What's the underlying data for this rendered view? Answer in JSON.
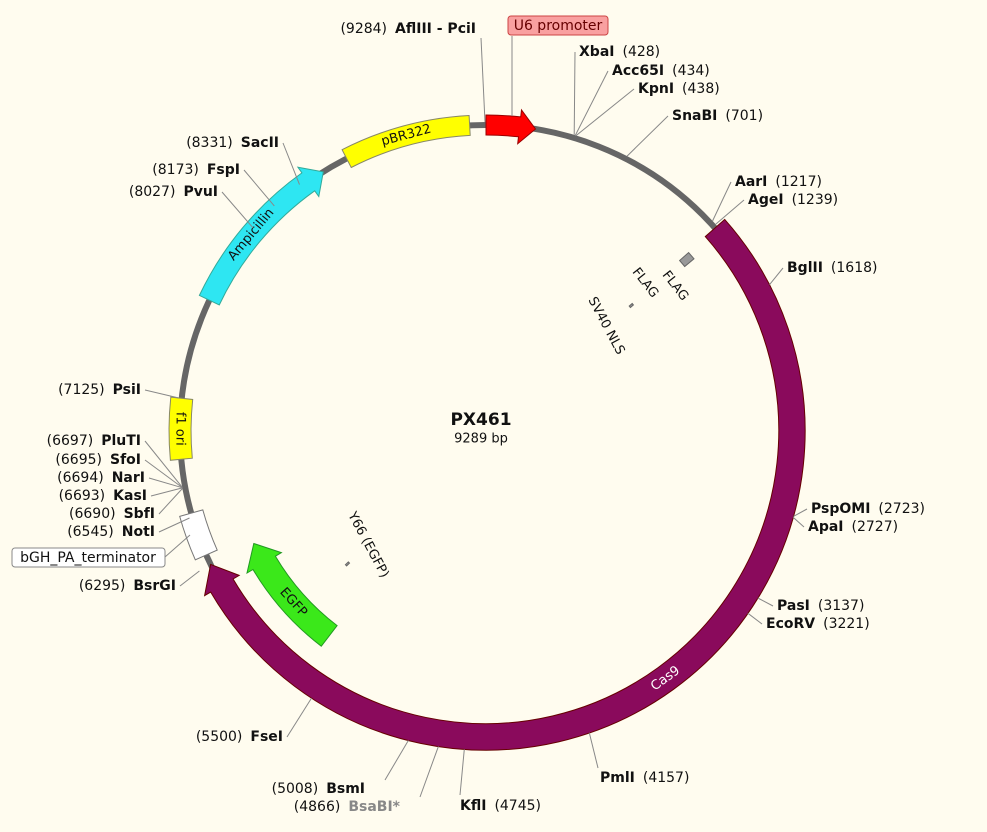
{
  "title": "PX461",
  "length": "9289 bp",
  "features": [
    {
      "label": "U6 promoter"
    },
    {
      "label": "pBR322"
    },
    {
      "label": "Ampicillin"
    },
    {
      "label": "f1 ori"
    },
    {
      "label": "bGH_PA_terminator"
    },
    {
      "label": "Cas9"
    },
    {
      "label": "EGFP"
    },
    {
      "label": "FLAG"
    },
    {
      "label": "FLAG"
    },
    {
      "label": "SV40 NLS"
    },
    {
      "label": "Y66 (EGFP)"
    }
  ],
  "sites": [
    {
      "name": "AflIII - PciI",
      "position": "(9284)"
    },
    {
      "name": "XbaI",
      "position": "(428)"
    },
    {
      "name": "Acc65I",
      "position": "(434)"
    },
    {
      "name": "KpnI",
      "position": "(438)"
    },
    {
      "name": "SnaBI",
      "position": "(701)"
    },
    {
      "name": "AarI",
      "position": "(1217)"
    },
    {
      "name": "AgeI",
      "position": "(1239)"
    },
    {
      "name": "BglII",
      "position": "(1618)"
    },
    {
      "name": "PspOMI",
      "position": "(2723)"
    },
    {
      "name": "ApaI",
      "position": "(2727)"
    },
    {
      "name": "PasI",
      "position": "(3137)"
    },
    {
      "name": "EcoRV",
      "position": "(3221)"
    },
    {
      "name": "PmlI",
      "position": "(4157)"
    },
    {
      "name": "KflI",
      "position": "(4745)"
    },
    {
      "name": "BsaBI*",
      "position": "(4866)"
    },
    {
      "name": "BsmI",
      "position": "(5008)"
    },
    {
      "name": "FseI",
      "position": "(5500)"
    },
    {
      "name": "BsrGI",
      "position": "(6295)"
    },
    {
      "name": "NotI",
      "position": "(6545)"
    },
    {
      "name": "SbfI",
      "position": "(6690)"
    },
    {
      "name": "KasI",
      "position": "(6693)"
    },
    {
      "name": "NarI",
      "position": "(6694)"
    },
    {
      "name": "SfoI",
      "position": "(6695)"
    },
    {
      "name": "PluTI",
      "position": "(6697)"
    },
    {
      "name": "PsiI",
      "position": "(7125)"
    },
    {
      "name": "PvuI",
      "position": "(8027)"
    },
    {
      "name": "FspI",
      "position": "(8173)"
    },
    {
      "name": "SacII",
      "position": "(8331)"
    }
  ]
}
